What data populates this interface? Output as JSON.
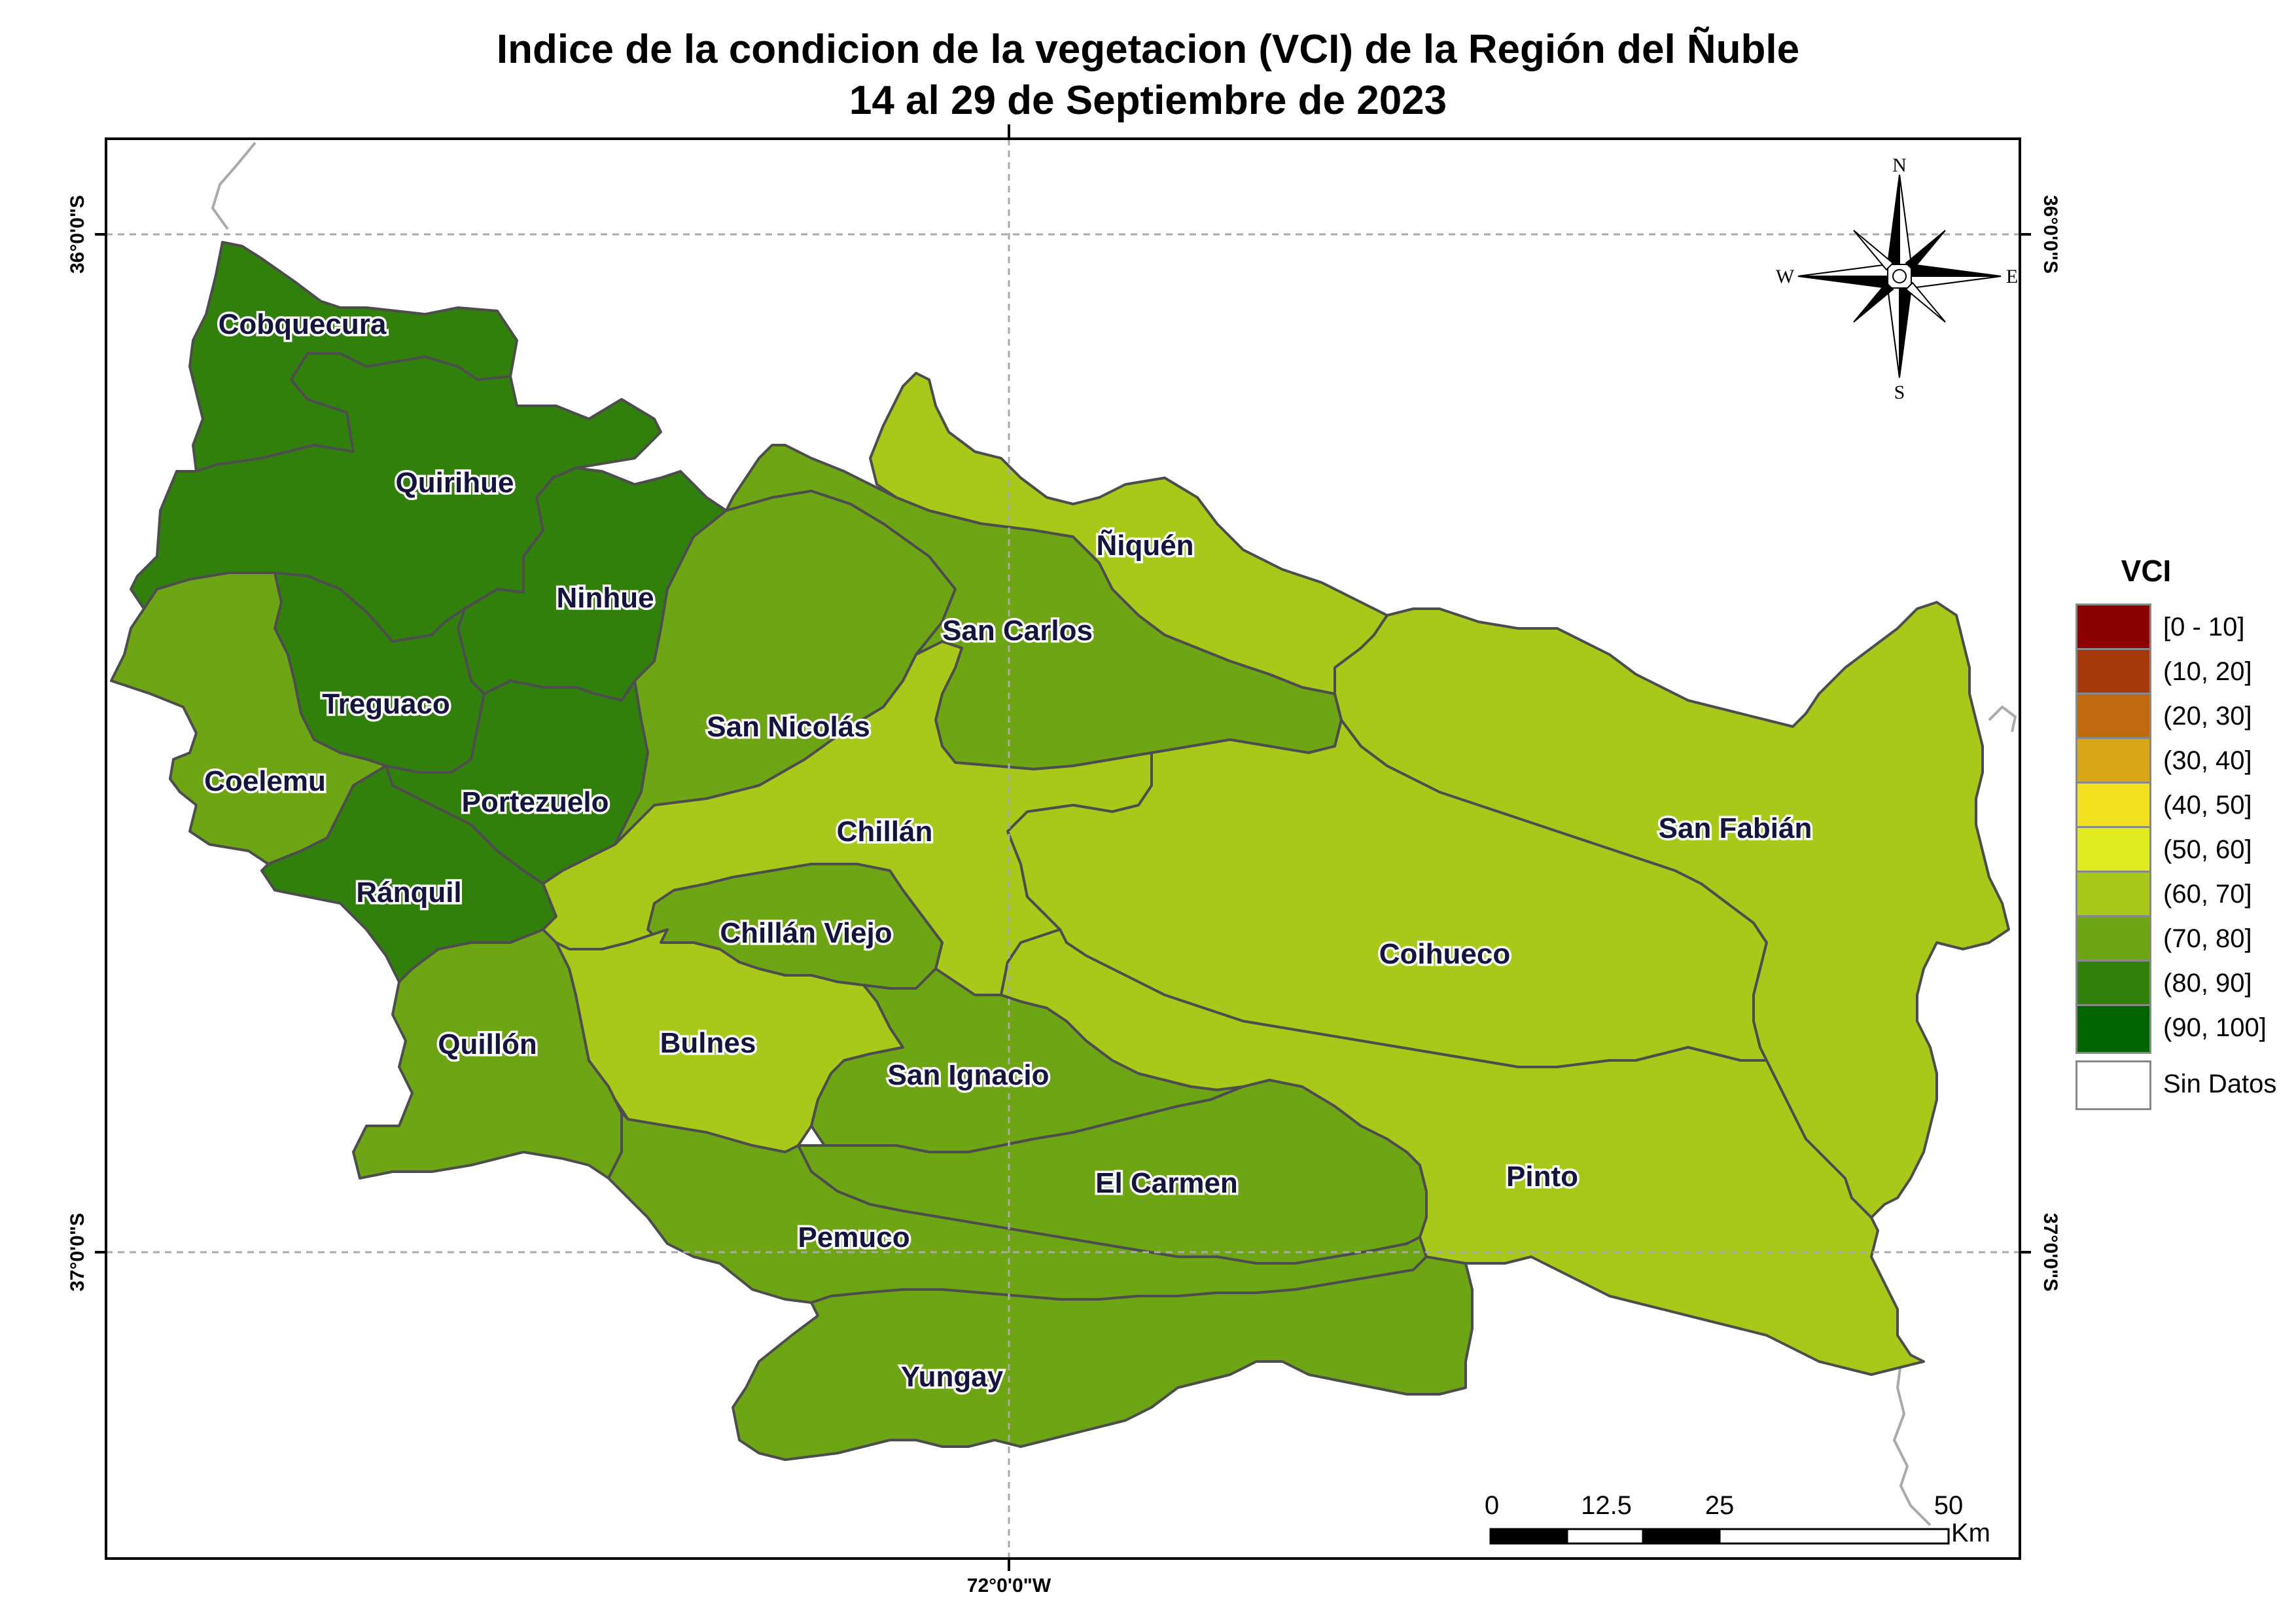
{
  "title_line1": "Indice de la condicion de la vegetacion (VCI) de la Región del Ñuble",
  "title_line2": "14 al 29 de Septiembre de 2023",
  "coords": {
    "lat_top": "36°0'0\"S",
    "lat_bottom": "37°0'0\"S",
    "lon_bottom": "72°0'0\"W"
  },
  "compass": {
    "n": "N",
    "s": "S",
    "e": "E",
    "w": "W"
  },
  "legend": {
    "title": "VCI",
    "items": [
      {
        "label": "[0 - 10]",
        "color": "#8b0000"
      },
      {
        "label": "(10, 20]",
        "color": "#a43a0a"
      },
      {
        "label": "(20, 30]",
        "color": "#c06a10"
      },
      {
        "label": "(30, 40]",
        "color": "#d8a818"
      },
      {
        "label": "(40, 50]",
        "color": "#f0e020"
      },
      {
        "label": "(50, 60]",
        "color": "#e0ec20"
      },
      {
        "label": "(60, 70]",
        "color": "#a8c81a"
      },
      {
        "label": "(70, 80]",
        "color": "#6ea514"
      },
      {
        "label": "(80, 90]",
        "color": "#31800c"
      },
      {
        "label": "(90, 100]",
        "color": "#006400"
      },
      {
        "label": "Sin Datos",
        "color": "#ffffff"
      }
    ]
  },
  "comunas": [
    {
      "name": "Cobquecura",
      "class": "(80, 90]"
    },
    {
      "name": "Quirihue",
      "class": "(80, 90]"
    },
    {
      "name": "Ninhue",
      "class": "(80, 90]"
    },
    {
      "name": "Treguaco",
      "class": "(80, 90]"
    },
    {
      "name": "Portezuelo",
      "class": "(80, 90]"
    },
    {
      "name": "Ránquil",
      "class": "(80, 90]"
    },
    {
      "name": "Coelemu",
      "class": "(70, 80]"
    },
    {
      "name": "San Carlos",
      "class": "(70, 80]"
    },
    {
      "name": "San Nicolás",
      "class": "(70, 80]"
    },
    {
      "name": "Chillán Viejo",
      "class": "(70, 80]"
    },
    {
      "name": "Quillón",
      "class": "(70, 80]"
    },
    {
      "name": "San Ignacio",
      "class": "(70, 80]"
    },
    {
      "name": "El Carmen",
      "class": "(70, 80]"
    },
    {
      "name": "Pemuco",
      "class": "(70, 80]"
    },
    {
      "name": "Yungay",
      "class": "(70, 80]"
    },
    {
      "name": "Ñiquén",
      "class": "(60, 70]"
    },
    {
      "name": "Chillán",
      "class": "(60, 70]"
    },
    {
      "name": "Bulnes",
      "class": "(60, 70]"
    },
    {
      "name": "Coihueco",
      "class": "(60, 70]"
    },
    {
      "name": "San Fabián",
      "class": "(60, 70]"
    },
    {
      "name": "Pinto",
      "class": "(60, 70]"
    }
  ],
  "scale_bar": {
    "ticks": [
      "0",
      "12.5",
      "25",
      "50"
    ],
    "unit": "Km"
  }
}
